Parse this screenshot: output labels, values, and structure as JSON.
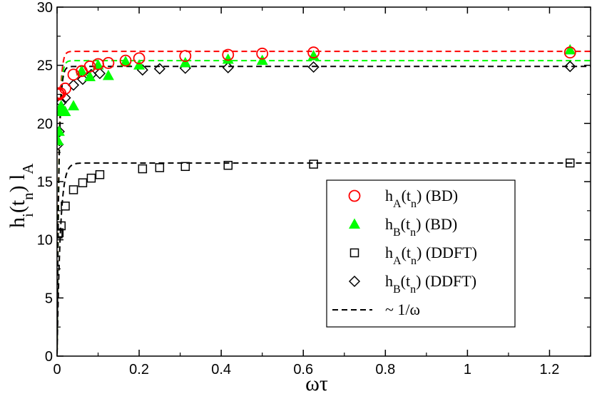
{
  "chart_data": {
    "type": "scatter",
    "title": "",
    "xlabel": "ωτ",
    "ylabel": "h_i(t_n) l_A",
    "xlim": [
      0,
      1.3
    ],
    "ylim": [
      0,
      30
    ],
    "xticks": [
      0,
      0.2,
      0.4,
      0.6,
      0.8,
      1.0,
      1.2
    ],
    "xtick_labels": [
      "0",
      "0.2",
      "0.4",
      "0.6",
      "0.8",
      "1",
      "1.2"
    ],
    "yticks": [
      0,
      5,
      10,
      15,
      20,
      25,
      30
    ],
    "ytick_labels": [
      "0",
      "5",
      "10",
      "15",
      "20",
      "25",
      "30"
    ],
    "grid": false,
    "legend_position": "lower-right",
    "series": [
      {
        "name": "hA(tn) (BD)",
        "marker": "circle-open",
        "color": "#ff0000",
        "x": [
          0.0025,
          0.004,
          0.005,
          0.008,
          0.02,
          0.04,
          0.06,
          0.08,
          0.1,
          0.125,
          0.167,
          0.2,
          0.3125,
          0.4167,
          0.5,
          0.625,
          1.25
        ],
        "y": [
          22.6,
          22.5,
          22.5,
          22.6,
          23.0,
          24.2,
          24.5,
          24.9,
          25.1,
          25.2,
          25.4,
          25.6,
          25.8,
          25.9,
          26.0,
          26.1,
          26.1
        ]
      },
      {
        "name": "hB(tn) (BD)",
        "marker": "triangle-filled",
        "color": "#00ff00",
        "x": [
          0.0025,
          0.005,
          0.008,
          0.01,
          0.02,
          0.04,
          0.06,
          0.08,
          0.1,
          0.125,
          0.167,
          0.2,
          0.3125,
          0.4167,
          0.5,
          0.625,
          1.25
        ],
        "y": [
          18.5,
          19.3,
          21.0,
          21.5,
          21.0,
          21.5,
          24.5,
          24.0,
          25.0,
          24.1,
          25.3,
          25.0,
          25.2,
          25.5,
          25.4,
          25.8,
          26.3
        ]
      },
      {
        "name": "hA(tn) (DDFT)",
        "marker": "square-open",
        "color": "#000000",
        "x": [
          0.0025,
          0.005,
          0.01,
          0.02,
          0.04,
          0.0625,
          0.0833,
          0.1042,
          0.2083,
          0.25,
          0.3125,
          0.4167,
          0.625,
          1.25
        ],
        "y": [
          10.5,
          10.6,
          11.2,
          12.9,
          14.3,
          14.9,
          15.3,
          15.6,
          16.1,
          16.2,
          16.3,
          16.4,
          16.5,
          16.6
        ]
      },
      {
        "name": "hB(tn) (DDFT)",
        "marker": "diamond-open",
        "color": "#000000",
        "x": [
          0.0025,
          0.005,
          0.01,
          0.02,
          0.04,
          0.0625,
          0.0833,
          0.1042,
          0.2083,
          0.25,
          0.3125,
          0.4167,
          0.625,
          1.25
        ],
        "y": [
          18.2,
          19.3,
          21.8,
          22.2,
          23.3,
          23.8,
          24.2,
          24.3,
          24.6,
          24.7,
          24.75,
          24.8,
          24.85,
          24.9
        ]
      }
    ],
    "fits": [
      {
        "name": "~ 1/ω",
        "style": "dashed",
        "color": "#ff0000",
        "plateau": 26.2,
        "timescale": 0.0045
      },
      {
        "name": "~ 1/ω",
        "style": "dashed",
        "color": "#00ff00",
        "plateau": 25.4,
        "timescale": 0.0045
      },
      {
        "name": "~ 1/ω",
        "style": "dashed",
        "color": "#000000",
        "plateau": 24.9,
        "timescale": 0.0045
      },
      {
        "name": "~ 1/ω",
        "style": "dashed",
        "color": "#000000",
        "plateau": 16.6,
        "timescale": 0.008
      }
    ],
    "legend": [
      {
        "marker": "circle-open",
        "color": "#ff0000",
        "base": "h",
        "sub": "A",
        "mid": "(t",
        "sub2": "n",
        "tail": ") (BD)"
      },
      {
        "marker": "triangle-filled",
        "color": "#00ff00",
        "base": "h",
        "sub": "B",
        "mid": "(t",
        "sub2": "n",
        "tail": ") (BD)"
      },
      {
        "marker": "square-open",
        "color": "#000000",
        "base": "h",
        "sub": "A",
        "mid": "(t",
        "sub2": "n",
        "tail": ") (DDFT)"
      },
      {
        "marker": "diamond-open",
        "color": "#000000",
        "base": "h",
        "sub": "B",
        "mid": "(t",
        "sub2": "n",
        "tail": ") (DDFT)"
      },
      {
        "marker": "dashed-line",
        "color": "#000000",
        "label": "~ 1/ω"
      }
    ],
    "ylabel_parts": {
      "a": "h",
      "b": "i",
      "c": "(t",
      "d": "n",
      "e": ") l",
      "f": "A"
    }
  }
}
